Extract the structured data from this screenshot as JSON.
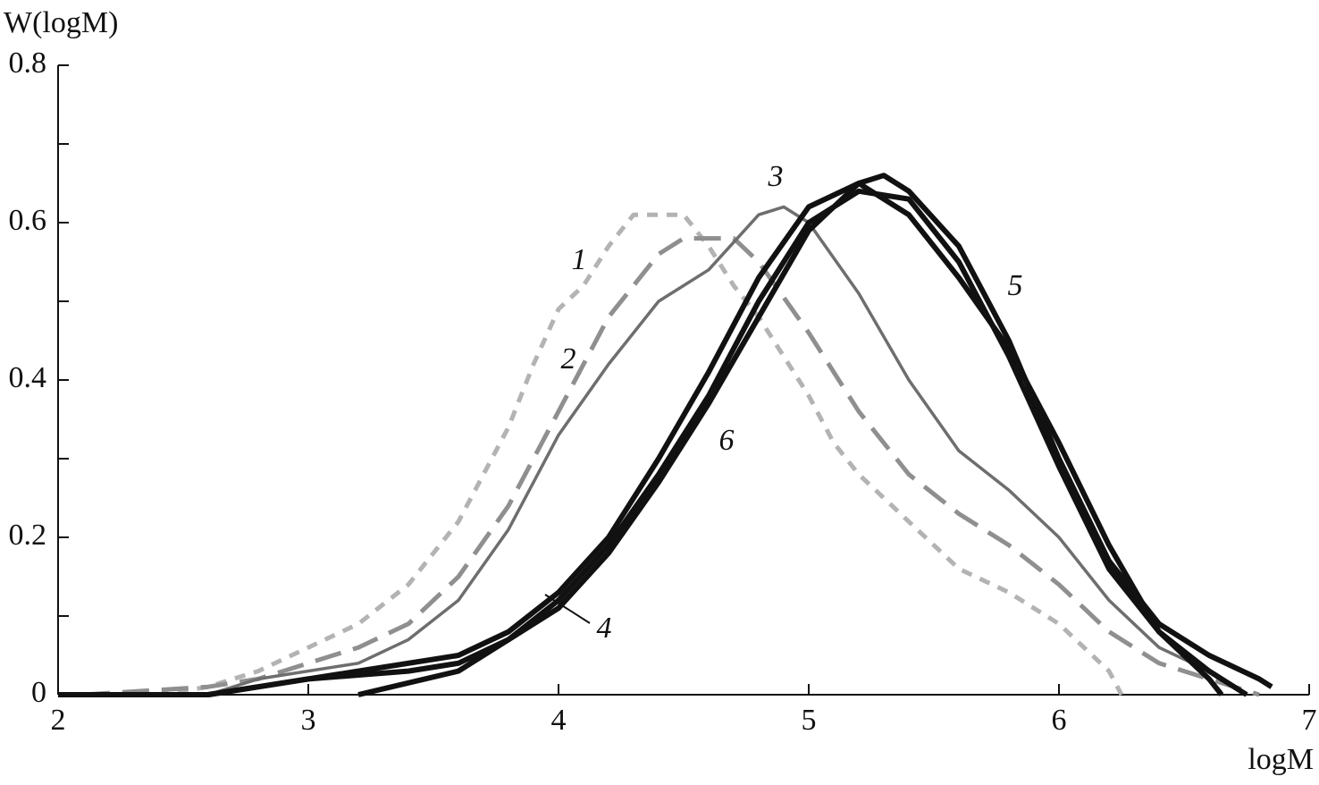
{
  "chart_data": {
    "type": "line",
    "ylabel": "W(logM)",
    "xlabel": "logM",
    "xlim": [
      2,
      7
    ],
    "xticks": [
      2,
      3,
      4,
      5,
      6,
      7
    ],
    "ylim": [
      0,
      0.8
    ],
    "yticks": [
      0,
      0.2,
      0.4,
      0.6,
      0.8
    ],
    "yminorticks": [
      0.1,
      0.3,
      0.5,
      0.7
    ],
    "grid": false,
    "series": [
      {
        "name": "1",
        "color": "#b3b3b3",
        "dash": "12 10",
        "width": 5,
        "x": [
          2.4,
          2.6,
          2.8,
          3.0,
          3.2,
          3.4,
          3.6,
          3.8,
          3.9,
          4.0,
          4.1,
          4.2,
          4.3,
          4.4,
          4.5,
          4.6,
          4.7,
          4.8,
          4.9,
          5.0,
          5.1,
          5.2,
          5.4,
          5.6,
          5.8,
          6.0,
          6.1,
          6.2,
          6.25
        ],
        "values": [
          0,
          0.01,
          0.03,
          0.06,
          0.09,
          0.14,
          0.22,
          0.34,
          0.42,
          0.49,
          0.52,
          0.57,
          0.61,
          0.61,
          0.61,
          0.57,
          0.52,
          0.48,
          0.43,
          0.38,
          0.32,
          0.28,
          0.22,
          0.16,
          0.13,
          0.09,
          0.06,
          0.03,
          0
        ]
      },
      {
        "name": "2",
        "color": "#8f8f8f",
        "dash": "30 14",
        "width": 5,
        "x": [
          2.1,
          2.6,
          2.8,
          3.0,
          3.2,
          3.4,
          3.6,
          3.8,
          4.0,
          4.2,
          4.4,
          4.5,
          4.7,
          4.8,
          5.0,
          5.2,
          5.4,
          5.6,
          5.8,
          6.0,
          6.2,
          6.4,
          6.6,
          6.8
        ],
        "values": [
          0,
          0.01,
          0.02,
          0.04,
          0.06,
          0.09,
          0.15,
          0.24,
          0.36,
          0.48,
          0.56,
          0.58,
          0.58,
          0.55,
          0.46,
          0.36,
          0.28,
          0.23,
          0.19,
          0.14,
          0.08,
          0.04,
          0.02,
          0
        ]
      },
      {
        "name": "3",
        "color": "#6e6e6e",
        "dash": "",
        "width": 3.5,
        "x": [
          2.6,
          2.8,
          3.2,
          3.4,
          3.6,
          3.8,
          4.0,
          4.2,
          4.4,
          4.6,
          4.8,
          4.9,
          5.0,
          5.2,
          5.4,
          5.6,
          5.8,
          6.0,
          6.2,
          6.4,
          6.6,
          6.75
        ],
        "values": [
          0,
          0.02,
          0.04,
          0.07,
          0.12,
          0.21,
          0.33,
          0.42,
          0.5,
          0.54,
          0.61,
          0.62,
          0.6,
          0.51,
          0.4,
          0.31,
          0.26,
          0.2,
          0.12,
          0.06,
          0.03,
          0
        ]
      },
      {
        "name": "4",
        "color": "#111111",
        "dash": "",
        "width": 6,
        "x": [
          2.0,
          2.6,
          2.8,
          3.2,
          3.6,
          3.8,
          4.0,
          4.2,
          4.4,
          4.6,
          4.8,
          5.0,
          5.2,
          5.4,
          5.6,
          5.8,
          6.0,
          6.2,
          6.4,
          6.6,
          6.65
        ],
        "values": [
          0,
          0,
          0.01,
          0.03,
          0.05,
          0.08,
          0.13,
          0.2,
          0.3,
          0.41,
          0.53,
          0.62,
          0.65,
          0.61,
          0.53,
          0.44,
          0.32,
          0.19,
          0.08,
          0.02,
          0
        ]
      },
      {
        "name": "5",
        "color": "#111111",
        "dash": "",
        "width": 6,
        "x": [
          3.2,
          3.6,
          3.8,
          4.0,
          4.2,
          4.4,
          4.6,
          4.8,
          5.0,
          5.2,
          5.3,
          5.4,
          5.6,
          5.8,
          6.0,
          6.2,
          6.4,
          6.6,
          6.8,
          6.85
        ],
        "values": [
          0,
          0.03,
          0.07,
          0.11,
          0.18,
          0.27,
          0.37,
          0.48,
          0.59,
          0.65,
          0.66,
          0.64,
          0.57,
          0.45,
          0.3,
          0.17,
          0.09,
          0.05,
          0.02,
          0.01
        ]
      },
      {
        "name": "6",
        "color": "#111111",
        "dash": "",
        "width": 6,
        "x": [
          2.0,
          2.6,
          3.0,
          3.4,
          3.6,
          3.8,
          4.0,
          4.2,
          4.4,
          4.6,
          4.8,
          5.0,
          5.2,
          5.4,
          5.6,
          5.8,
          6.0,
          6.2,
          6.4,
          6.6,
          6.75
        ],
        "values": [
          0,
          0,
          0.02,
          0.03,
          0.04,
          0.07,
          0.12,
          0.19,
          0.28,
          0.38,
          0.5,
          0.6,
          0.64,
          0.63,
          0.55,
          0.43,
          0.29,
          0.16,
          0.08,
          0.03,
          0
        ]
      }
    ]
  }
}
